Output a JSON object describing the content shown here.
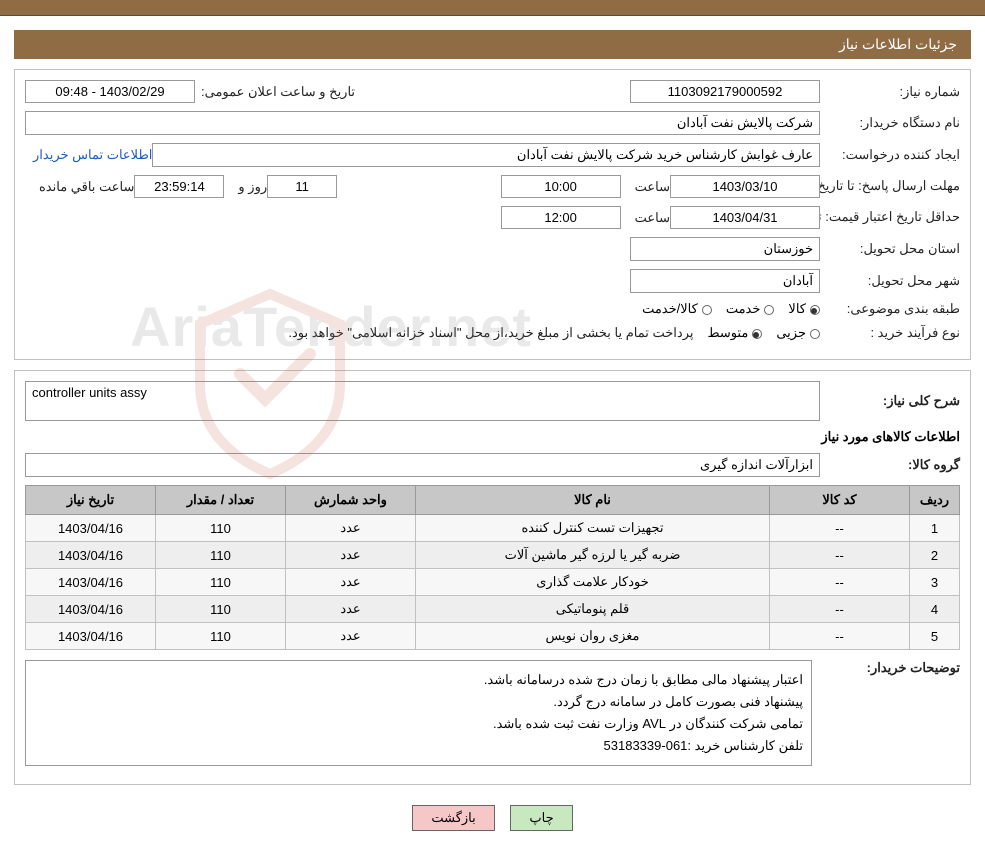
{
  "colors": {
    "brand_brown": "#8f6c43",
    "panel_border": "#c0c0c0",
    "input_border": "#999999",
    "th_bg": "#c7c7c7",
    "row_odd": "#f7f7f7",
    "row_even": "#eeeeee",
    "link": "#1a5bc4",
    "btn_green": "#c8e8c0",
    "btn_pink": "#f5c7c7"
  },
  "title": "جزئیات اطلاعات نیاز",
  "fields": {
    "need_number_label": "شماره نیاز:",
    "need_number": "1103092179000592",
    "announce_datetime_label": "تاریخ و ساعت اعلان عمومی:",
    "announce_datetime": "1403/02/29 - 09:48",
    "buyer_org_label": "نام دستگاه خریدار:",
    "buyer_org": "شرکت پالایش نفت آبادان",
    "requester_label": "ایجاد کننده درخواست:",
    "requester": "عارف غوابش کارشناس خرید شرکت پالایش نفت آبادان",
    "buyer_contact_link": "اطلاعات تماس خریدار",
    "reply_deadline_label": "مهلت ارسال پاسخ: تا تاریخ:",
    "reply_deadline_date": "1403/03/10",
    "time_label": "ساعت",
    "reply_deadline_time": "10:00",
    "days_label": "روز و",
    "days_value": "11",
    "countdown": "23:59:14",
    "remaining_label": "ساعت باقي مانده",
    "price_validity_label": "حداقل تاریخ اعتبار قیمت: تا تاریخ:",
    "price_validity_date": "1403/04/31",
    "price_validity_time": "12:00",
    "delivery_province_label": "استان محل تحویل:",
    "delivery_province": "خوزستان",
    "delivery_city_label": "شهر محل تحویل:",
    "delivery_city": "آبادان",
    "classification_label": "طبقه بندی موضوعی:",
    "class_goods": "کالا",
    "class_service": "خدمت",
    "class_goods_service": "کالا/خدمت",
    "process_type_label": "نوع فرآیند خرید :",
    "process_partial": "جزیی",
    "process_medium": "متوسط",
    "process_note": "پرداخت تمام یا بخشی از مبلغ خرید،از محل \"اسناد خزانه اسلامی\" خواهد بود."
  },
  "need": {
    "overall_label": "شرح کلی نیاز:",
    "overall_desc": "controller units assy",
    "items_info_title": "اطلاعات کالاهای مورد نیاز",
    "group_label": "گروه کالا:",
    "group_value": "ابزارآلات اندازه گیری"
  },
  "table": {
    "columns": [
      "ردیف",
      "کد کالا",
      "نام کالا",
      "واحد شمارش",
      "تعداد / مقدار",
      "تاریخ نیاز"
    ],
    "col_widths": [
      "50px",
      "140px",
      "auto",
      "130px",
      "130px",
      "130px"
    ],
    "rows": [
      [
        "1",
        "--",
        "تجهیزات تست کنترل کننده",
        "عدد",
        "110",
        "1403/04/16"
      ],
      [
        "2",
        "--",
        "ضربه گیر یا لرزه گیر ماشین آلات",
        "عدد",
        "110",
        "1403/04/16"
      ],
      [
        "3",
        "--",
        "خودکار علامت گذاری",
        "عدد",
        "110",
        "1403/04/16"
      ],
      [
        "4",
        "--",
        "قلم پنوماتیکی",
        "عدد",
        "110",
        "1403/04/16"
      ],
      [
        "5",
        "--",
        "مغزی روان نویس",
        "عدد",
        "110",
        "1403/04/16"
      ]
    ]
  },
  "remarks": {
    "label": "توضیحات خریدار:",
    "lines": [
      "اعتبار پیشنهاد مالی مطابق با زمان درج شده درسامانه باشد.",
      "پیشنهاد فنی بصورت کامل در سامانه درج گردد.",
      "تمامی شرکت کنندگان در AVL وزارت نفت ثبت شده باشد.",
      "تلفن کارشناس خرید :061-53183339"
    ]
  },
  "buttons": {
    "print": "چاپ",
    "back": "بازگشت"
  },
  "watermark": "AriaTender.net"
}
